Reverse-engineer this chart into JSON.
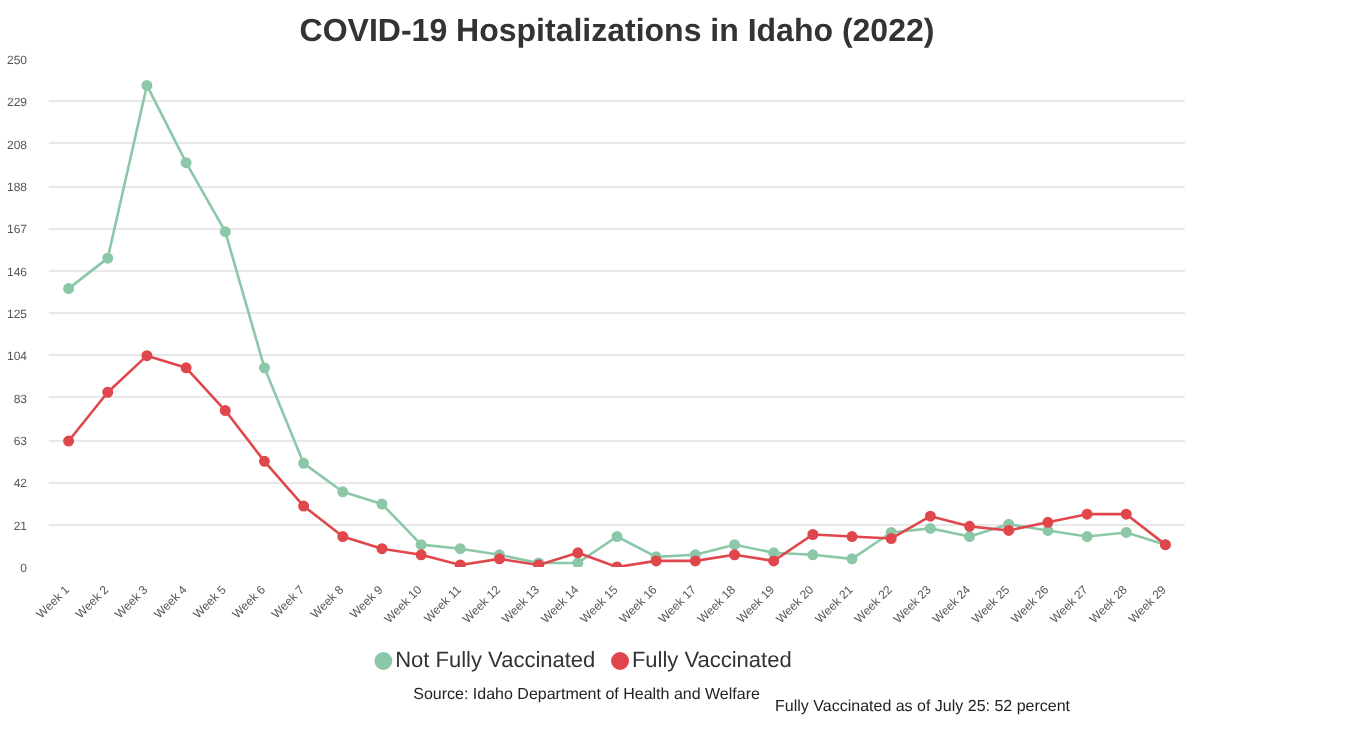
{
  "chart_data": {
    "type": "line",
    "title": "COVID-19 Hospitalizations in Idaho (2022)",
    "categories": [
      "Week 1",
      "Week 2",
      "Week 3",
      "Week 4",
      "Week 5",
      "Week 6",
      "Week 7",
      "Week 8",
      "Week 9",
      "Week 10",
      "Week 11",
      "Week 12",
      "Week 13",
      "Week 14",
      "Week 15",
      "Week 16",
      "Week 17",
      "Week 18",
      "Week 19",
      "Week 20",
      "Week 21",
      "Week 22",
      "Week 23",
      "Week 24",
      "Week 25",
      "Week 26",
      "Week 27",
      "Week 28",
      "Week 29"
    ],
    "series": [
      {
        "name": "Not Fully Vaccinated",
        "color": "#8cc8a8",
        "values": [
          137,
          152,
          237,
          199,
          165,
          98,
          51,
          37,
          31,
          11,
          9,
          6,
          2,
          2,
          15,
          5,
          6,
          11,
          7,
          6,
          4,
          17,
          19,
          15,
          21,
          18,
          15,
          17,
          11
        ]
      },
      {
        "name": "Fully Vaccinated",
        "color": "#e0474c",
        "values": [
          62,
          86,
          104,
          98,
          77,
          52,
          30,
          15,
          9,
          6,
          1,
          4,
          1,
          7,
          0,
          3,
          3,
          6,
          3,
          16,
          15,
          14,
          25,
          20,
          18,
          22,
          26,
          26,
          11
        ]
      }
    ],
    "ylim": [
      0,
      250
    ],
    "yticks": [
      0,
      {
        "value": 20.83,
        "label": "21"
      },
      {
        "value": 41.67,
        "label": "42"
      },
      {
        "value": 62.5,
        "label": "63"
      },
      {
        "value": 83.33,
        "label": "83"
      },
      {
        "value": 104.17,
        "label": "104"
      },
      {
        "value": 125,
        "label": "125"
      },
      {
        "value": 145.83,
        "label": "146"
      },
      {
        "value": 166.67,
        "label": "167"
      },
      {
        "value": 187.5,
        "label": "188"
      },
      {
        "value": 208.33,
        "label": "208"
      },
      {
        "value": 229.17,
        "label": "229"
      },
      250
    ],
    "grid": "y",
    "legend": "bottom",
    "marker": "circle",
    "line_style": "solid",
    "annotations": [
      "Source: Idaho Department of Health and Welfare",
      "Fully Vaccinated as of July 25: 52 percent"
    ]
  }
}
